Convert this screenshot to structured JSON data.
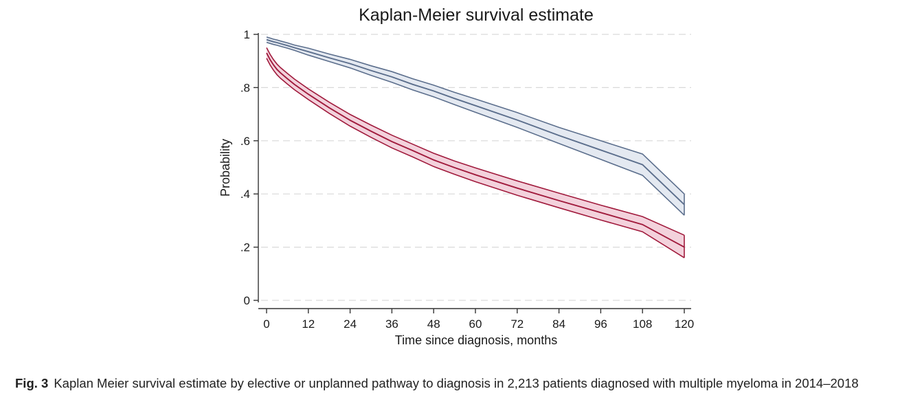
{
  "chart_data": {
    "type": "line",
    "title": "Kaplan-Meier survival estimate",
    "xlabel": "Time since diagnosis, months",
    "ylabel": "Probability",
    "xlim": [
      0,
      120
    ],
    "ylim": [
      0,
      1
    ],
    "x_ticks": [
      0,
      12,
      24,
      36,
      48,
      60,
      72,
      84,
      96,
      108,
      120
    ],
    "x_tick_labels": [
      "0",
      "12",
      "24",
      "36",
      "48",
      "60",
      "72",
      "84",
      "96",
      "108",
      "120"
    ],
    "y_ticks": [
      0,
      0.2,
      0.4,
      0.6,
      0.8,
      1
    ],
    "y_tick_labels": [
      "0",
      ".2",
      ".4",
      ".6",
      ".8",
      "1"
    ],
    "grid": "horizontal dashed",
    "confidence_bands": true,
    "x": [
      0,
      1,
      2,
      3,
      4,
      6,
      8,
      12,
      18,
      24,
      30,
      36,
      42,
      48,
      54,
      60,
      72,
      84,
      96,
      108,
      120
    ],
    "series": [
      {
        "color": "#5b6e8c",
        "band_fill": "#e4e9f1",
        "values": [
          0.98,
          0.976,
          0.972,
          0.969,
          0.965,
          0.958,
          0.95,
          0.935,
          0.912,
          0.89,
          0.864,
          0.84,
          0.812,
          0.787,
          0.759,
          0.732,
          0.678,
          0.62,
          0.565,
          0.51,
          0.36
        ],
        "lower": [
          0.97,
          0.966,
          0.962,
          0.959,
          0.955,
          0.948,
          0.94,
          0.922,
          0.898,
          0.874,
          0.846,
          0.82,
          0.791,
          0.765,
          0.736,
          0.707,
          0.65,
          0.59,
          0.53,
          0.47,
          0.32
        ],
        "upper": [
          0.99,
          0.986,
          0.982,
          0.979,
          0.975,
          0.968,
          0.96,
          0.948,
          0.926,
          0.906,
          0.882,
          0.86,
          0.833,
          0.809,
          0.782,
          0.757,
          0.706,
          0.65,
          0.6,
          0.55,
          0.4
        ]
      },
      {
        "color": "#a01a3c",
        "band_fill": "#f3d2dc",
        "values": [
          0.93,
          0.905,
          0.885,
          0.868,
          0.855,
          0.833,
          0.812,
          0.775,
          0.724,
          0.677,
          0.636,
          0.597,
          0.563,
          0.528,
          0.499,
          0.472,
          0.422,
          0.375,
          0.33,
          0.285,
          0.2
        ],
        "lower": [
          0.91,
          0.885,
          0.865,
          0.848,
          0.835,
          0.813,
          0.792,
          0.755,
          0.703,
          0.655,
          0.613,
          0.573,
          0.539,
          0.503,
          0.474,
          0.446,
          0.395,
          0.348,
          0.302,
          0.258,
          0.16
        ],
        "upper": [
          0.95,
          0.925,
          0.905,
          0.888,
          0.875,
          0.853,
          0.832,
          0.795,
          0.745,
          0.699,
          0.659,
          0.621,
          0.587,
          0.553,
          0.524,
          0.498,
          0.449,
          0.403,
          0.358,
          0.315,
          0.245
        ]
      }
    ]
  },
  "caption": {
    "label": "Fig. 3",
    "text": "Kaplan Meier survival estimate by elective or unplanned pathway to diagnosis in 2,213 patients diagnosed with multiple myeloma in 2014–2018"
  }
}
